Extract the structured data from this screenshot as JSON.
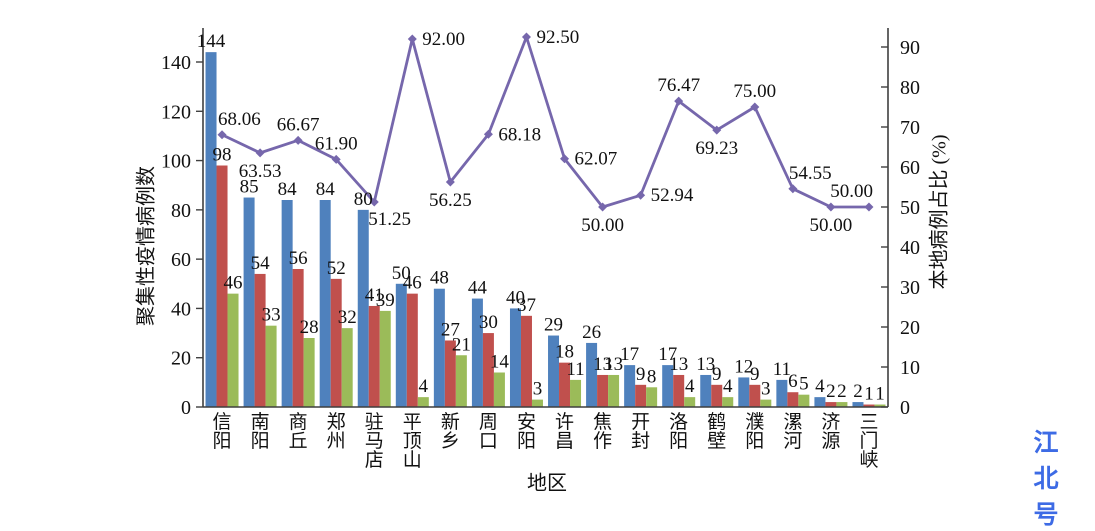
{
  "watermark": {
    "text": "江北号",
    "color": "#3D6BE5"
  },
  "chart_data": {
    "type": "bar",
    "subtype": "grouped-bars-with-line-overlay",
    "title": "",
    "categories": [
      "信阳",
      "南阳",
      "商丘",
      "郑州",
      "驻马店",
      "平顶山",
      "新乡",
      "周口",
      "安阳",
      "许昌",
      "焦作",
      "开封",
      "洛阳",
      "鹤壁",
      "濮阳",
      "漯河",
      "济源",
      "三门峡"
    ],
    "bar_series": [
      {
        "name": "bars-blue",
        "color": "#4F81BD",
        "values": [
          144,
          85,
          84,
          84,
          80,
          50,
          48,
          44,
          40,
          29,
          26,
          17,
          17,
          13,
          12,
          11,
          4,
          2
        ]
      },
      {
        "name": "bars-red",
        "color": "#C0504D",
        "values": [
          98,
          54,
          56,
          52,
          41,
          46,
          27,
          30,
          37,
          18,
          13,
          9,
          13,
          9,
          9,
          6,
          2,
          1
        ]
      },
      {
        "name": "bars-green",
        "color": "#9BBB59",
        "values": [
          46,
          33,
          28,
          32,
          39,
          4,
          21,
          14,
          3,
          11,
          13,
          8,
          4,
          4,
          3,
          5,
          2,
          1
        ]
      }
    ],
    "line_series": {
      "name": "line-purple",
      "color": "#7667AC",
      "values": [
        68.06,
        63.53,
        66.67,
        61.9,
        51.25,
        92.0,
        56.25,
        68.18,
        92.5,
        62.07,
        50.0,
        52.94,
        76.47,
        69.23,
        75.0,
        54.55,
        50.0,
        50.0
      ],
      "label_pos": [
        "above-right",
        "below",
        "above",
        "above",
        "below-right",
        "right",
        "below",
        "right",
        "right",
        "right",
        "below",
        "right",
        "above",
        "below",
        "above",
        "above-right",
        "below",
        "above-left"
      ]
    },
    "left_axis": {
      "title": "聚集性疫情病例数",
      "min": 0,
      "max": 140,
      "step": 20
    },
    "right_axis": {
      "title": "本地病例占比 (%)",
      "min": 0,
      "max": 90,
      "step": 10
    },
    "x_axis": {
      "title": "地区"
    },
    "legend": "none",
    "grid": false,
    "value_labels": true
  }
}
